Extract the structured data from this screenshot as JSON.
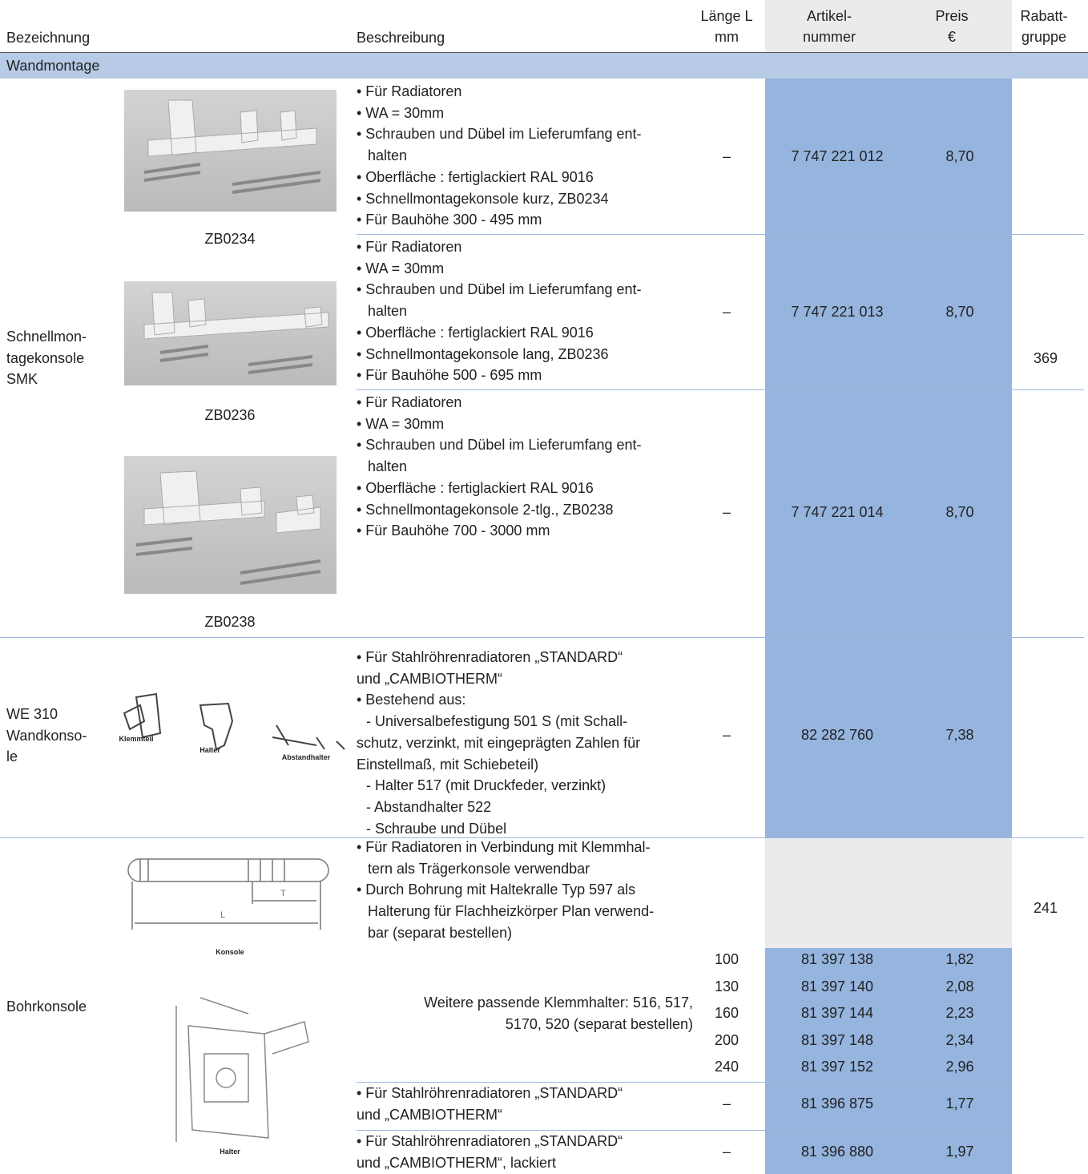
{
  "header": {
    "bezeichnung": "Bezeichnung",
    "beschreibung": "Beschreibung",
    "laenge": [
      "Länge L",
      "mm"
    ],
    "artikel": [
      "Artikel-",
      "nummer"
    ],
    "preis": [
      "Preis",
      "€"
    ],
    "rabatt": [
      "Rabatt-",
      "gruppe"
    ]
  },
  "section": "Wandmontage",
  "groups": [
    {
      "bezeichnung": [
        "Schnellmon-",
        "tagekonsole",
        "SMK"
      ],
      "rabatt": "369",
      "images": [
        "ZB0234",
        "ZB0236",
        "ZB0238"
      ],
      "rows": [
        {
          "desc": [
            "• Für Radiatoren",
            "• WA = 30mm",
            "• Schrauben und Dübel im Lieferumfang ent-",
            "halten",
            "• Oberfläche : fertiglackiert RAL 9016",
            "• Schnellmontagekonsole kurz, ZB0234",
            "• Für Bauhöhe 300 - 495 mm"
          ],
          "laenge": "–",
          "artikel": "7 747 221 012",
          "preis": "8,70"
        },
        {
          "desc": [
            "• Für Radiatoren",
            "• WA = 30mm",
            "• Schrauben und Dübel im Lieferumfang ent-",
            "halten",
            "• Oberfläche : fertiglackiert RAL 9016",
            "• Schnellmontagekonsole lang, ZB0236",
            "• Für Bauhöhe 500 - 695 mm"
          ],
          "laenge": "–",
          "artikel": "7 747 221 013",
          "preis": "8,70"
        },
        {
          "desc": [
            "• Für Radiatoren",
            "• WA = 30mm",
            "• Schrauben und Dübel im Lieferumfang ent-",
            "halten",
            "• Oberfläche : fertiglackiert RAL 9016",
            "• Schnellmontagekonsole 2-tlg., ZB0238",
            "• Für Bauhöhe 700 - 3000 mm"
          ],
          "laenge": "–",
          "artikel": "7 747 221 014",
          "preis": "8,70"
        }
      ]
    },
    {
      "bezeichnung": [
        "WE 310",
        "Wandkonso-",
        "le"
      ],
      "images": [
        "Klemmteil",
        "Halter",
        "Abstandhalter"
      ],
      "rows": [
        {
          "desc": [
            "• Für Stahlröhrenradiatoren „STANDARD“",
            "und „CAMBIOTHERM“",
            "• Bestehend aus:",
            "- Universalbefestigung 501 S (mit Schall-",
            "schutz, verzinkt, mit eingeprägten Zahlen für",
            "Einstellmaß, mit Schiebeteil)",
            "- Halter 517 (mit Druckfeder, verzinkt)",
            "- Abstandhalter 522",
            "- Schraube und Dübel"
          ],
          "laenge": "–",
          "artikel": "82 282 760",
          "preis": "7,38"
        }
      ]
    },
    {
      "bezeichnung": [
        "Bohrkonsole"
      ],
      "rabatt": "241",
      "images": [
        "Konsole",
        "Halter"
      ],
      "rows": [
        {
          "desc": [
            "• Für Radiatoren in Verbindung mit Klemmhal-",
            "tern als Trägerkonsole verwendbar",
            "• Durch Bohrung mit Haltekralle Typ 597 als",
            "Halterung für Flachheizkörper Plan verwend-",
            "bar (separat bestellen)"
          ]
        },
        {
          "note": [
            "Weitere passende Klemmhalter: 516, 517,",
            "5170, 520 (separat bestellen)"
          ],
          "variants": [
            {
              "laenge": "100",
              "artikel": "81 397 138",
              "preis": "1,82"
            },
            {
              "laenge": "130",
              "artikel": "81 397 140",
              "preis": "2,08"
            },
            {
              "laenge": "160",
              "artikel": "81 397 144",
              "preis": "2,23"
            },
            {
              "laenge": "200",
              "artikel": "81 397 148",
              "preis": "2,34"
            },
            {
              "laenge": "240",
              "artikel": "81 397 152",
              "preis": "2,96"
            }
          ]
        },
        {
          "desc": [
            "• Für Stahlröhrenradiatoren „STANDARD“",
            "und „CAMBIOTHERM“"
          ],
          "laenge": "–",
          "artikel": "81 396 875",
          "preis": "1,77"
        },
        {
          "desc": [
            "• Für Stahlröhrenradiatoren „STANDARD“",
            "und „CAMBIOTHERM“, lackiert"
          ],
          "laenge": "–",
          "artikel": "81 396 880",
          "preis": "1,97"
        }
      ]
    }
  ]
}
